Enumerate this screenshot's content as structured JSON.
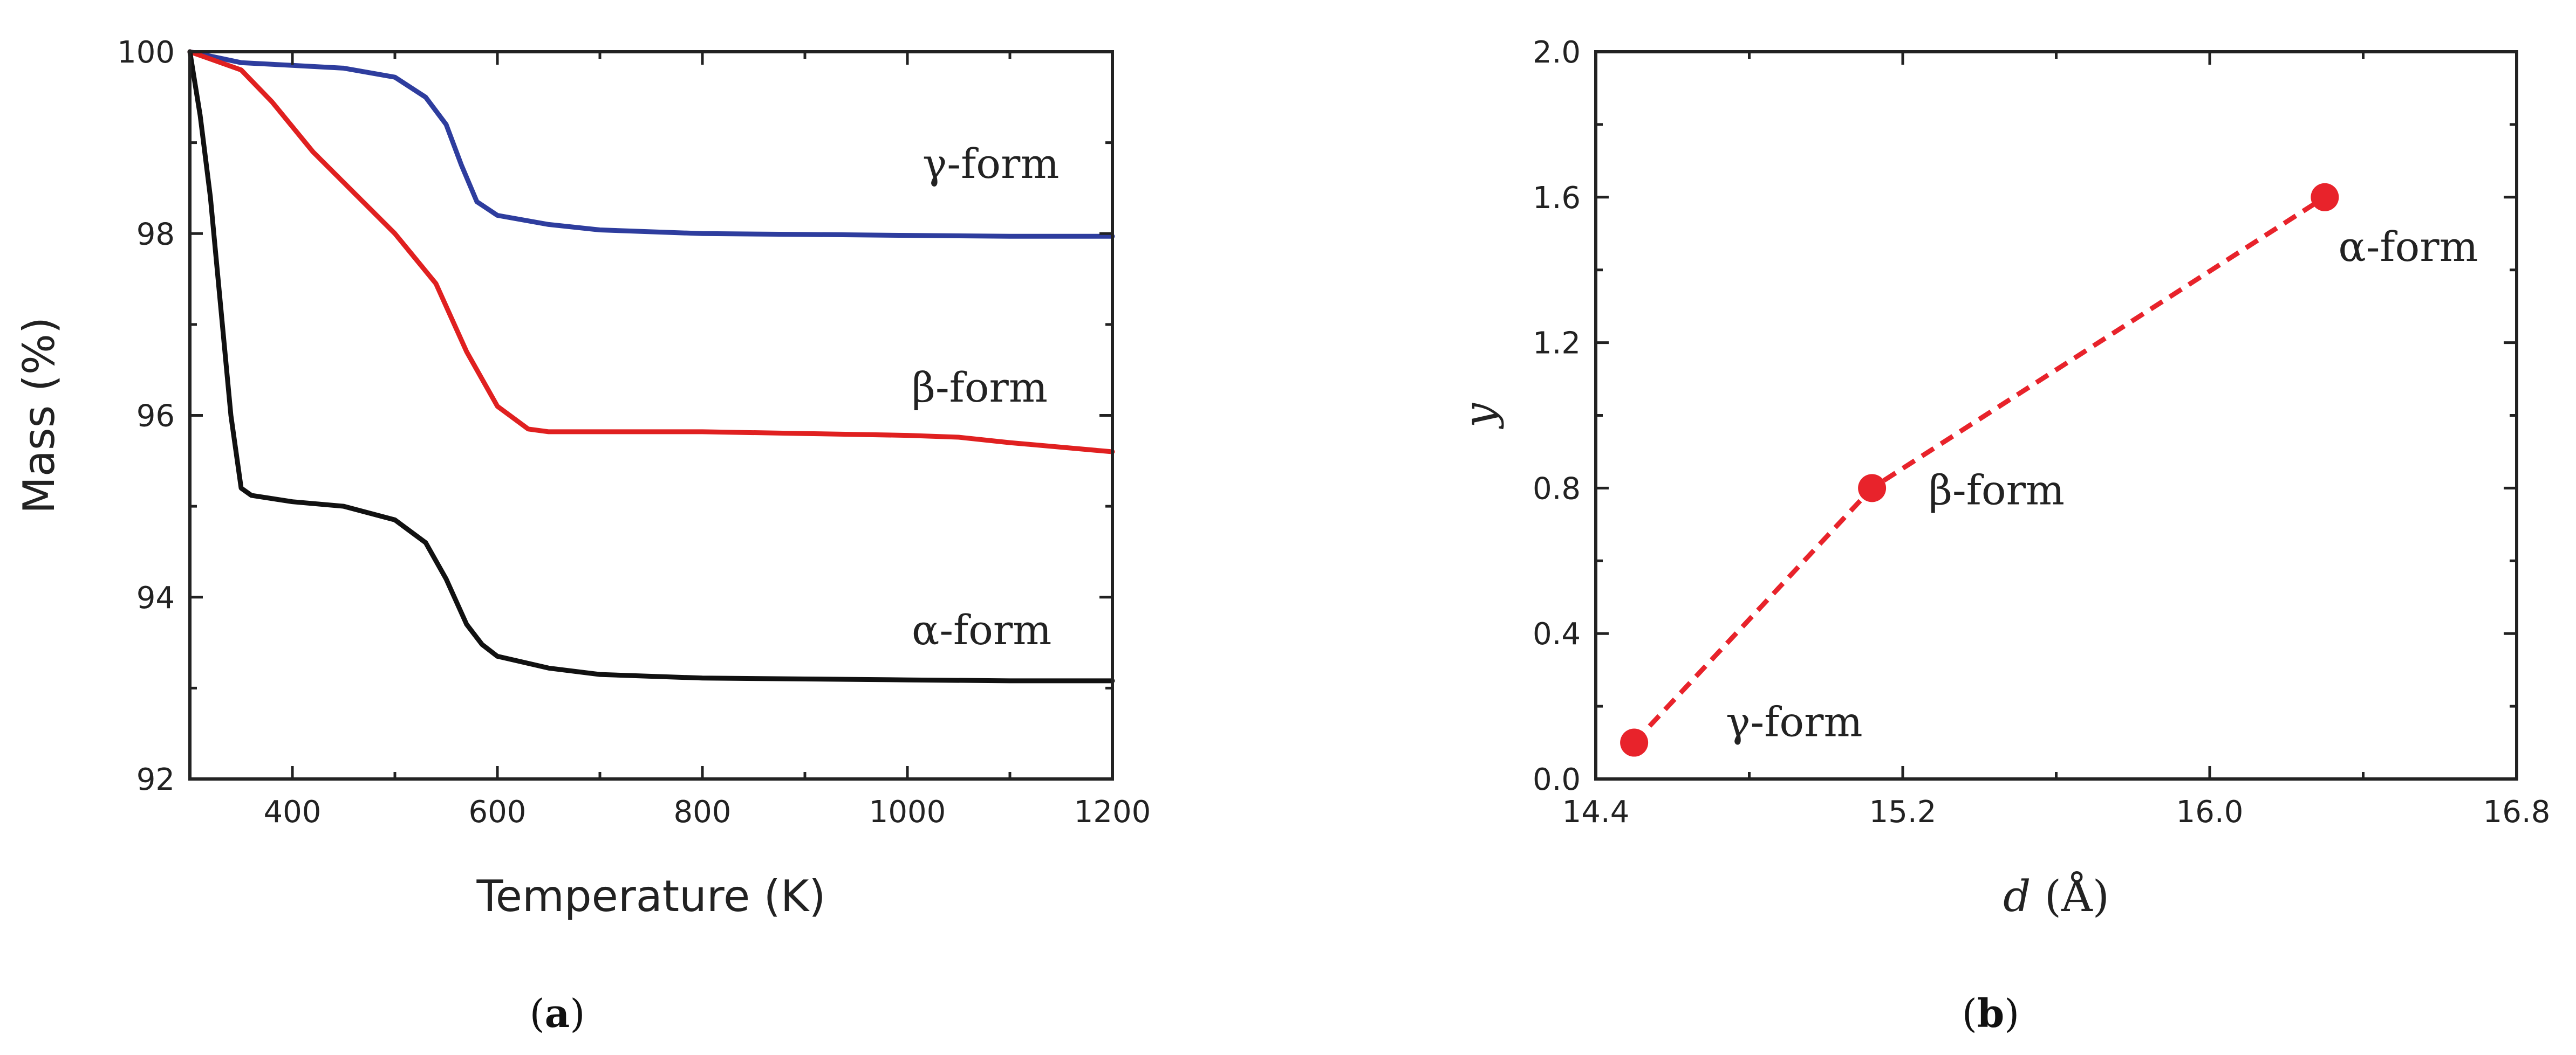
{
  "chart_data": [
    {
      "type": "line",
      "panel": "a",
      "caption": {
        "open": "(",
        "letter": "a",
        "close": ")"
      },
      "xlabel": "Temperature (K)",
      "ylabel": "Mass (%)",
      "xlim": [
        300,
        1200
      ],
      "ylim": [
        92,
        100
      ],
      "xticks": [
        400,
        600,
        800,
        1000,
        1200
      ],
      "yticks": [
        92,
        94,
        96,
        98,
        100
      ],
      "colors": {
        "gamma": "#2e3d9e",
        "beta": "#e02020",
        "alpha": "#111111"
      },
      "series": [
        {
          "key": "gamma",
          "name": "γ-form",
          "x": [
            300,
            350,
            400,
            450,
            500,
            530,
            550,
            565,
            580,
            600,
            650,
            700,
            800,
            900,
            1000,
            1100,
            1200
          ],
          "y": [
            100,
            99.88,
            99.85,
            99.82,
            99.72,
            99.5,
            99.2,
            98.75,
            98.35,
            98.2,
            98.1,
            98.04,
            98.0,
            97.99,
            97.98,
            97.97,
            97.97
          ]
        },
        {
          "key": "beta",
          "name": "β-form",
          "x": [
            300,
            350,
            380,
            420,
            460,
            500,
            540,
            570,
            600,
            630,
            650,
            700,
            800,
            900,
            1000,
            1050,
            1100,
            1200
          ],
          "y": [
            100,
            99.8,
            99.45,
            98.9,
            98.45,
            98.0,
            97.45,
            96.7,
            96.1,
            95.85,
            95.82,
            95.82,
            95.82,
            95.8,
            95.78,
            95.76,
            95.7,
            95.6
          ]
        },
        {
          "key": "alpha",
          "name": "α-form",
          "x": [
            300,
            310,
            320,
            330,
            340,
            350,
            360,
            400,
            450,
            500,
            530,
            550,
            570,
            585,
            600,
            650,
            700,
            800,
            900,
            1000,
            1100,
            1200
          ],
          "y": [
            100,
            99.3,
            98.4,
            97.2,
            96.0,
            95.2,
            95.12,
            95.05,
            95.0,
            94.85,
            94.6,
            94.2,
            93.7,
            93.48,
            93.35,
            93.22,
            93.15,
            93.11,
            93.1,
            93.09,
            93.08,
            93.08
          ]
        }
      ]
    },
    {
      "type": "scatter",
      "panel": "b",
      "caption": {
        "open": "(",
        "letter": "b",
        "close": ")"
      },
      "xlabel_var": "d",
      "xlabel_unit": " (Å)",
      "ylabel": "y",
      "xlim": [
        14.4,
        16.8
      ],
      "ylim": [
        0.0,
        2.0
      ],
      "xticks": [
        "14.4",
        "15.2",
        "16.0",
        "16.8"
      ],
      "yticks": [
        "0.0",
        "0.4",
        "0.8",
        "1.2",
        "1.6",
        "2.0"
      ],
      "color": "#e8232b",
      "connector": "dashed",
      "points": [
        {
          "name": "γ-form",
          "x": 14.5,
          "y": 0.1
        },
        {
          "name": "β-form",
          "x": 15.12,
          "y": 0.8
        },
        {
          "name": "α-form",
          "x": 16.3,
          "y": 1.6
        }
      ]
    }
  ]
}
